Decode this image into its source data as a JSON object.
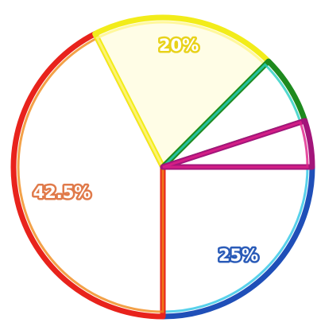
{
  "chart_data": {
    "type": "pie",
    "title": "",
    "legend": "none",
    "slices": [
      {
        "label": "25%",
        "value": 25,
        "color": "#1f4fb8",
        "fill": "#ffffff",
        "label_color": "#2a5bb8"
      },
      {
        "label": "42.5%",
        "value": 42.5,
        "color": "#e8231c",
        "fill": "#ffffff",
        "label_color": "#e07a4a"
      },
      {
        "label": "20%",
        "value": 20,
        "color": "#f2ec1a",
        "fill": "#fffde6",
        "label_color": "#e8d21a"
      },
      {
        "label": "",
        "value": 7.5,
        "color": "#1e8a1e",
        "fill": "#ffffff",
        "label_color": ""
      },
      {
        "label": "",
        "value": 5,
        "color": "#a3157a",
        "fill": "#ffffff",
        "label_color": ""
      }
    ],
    "slice_inner_colors": [
      "#2ec6e6",
      "#f08a1a",
      "#fff58a",
      "#27d0c2",
      "#e0218a"
    ]
  }
}
